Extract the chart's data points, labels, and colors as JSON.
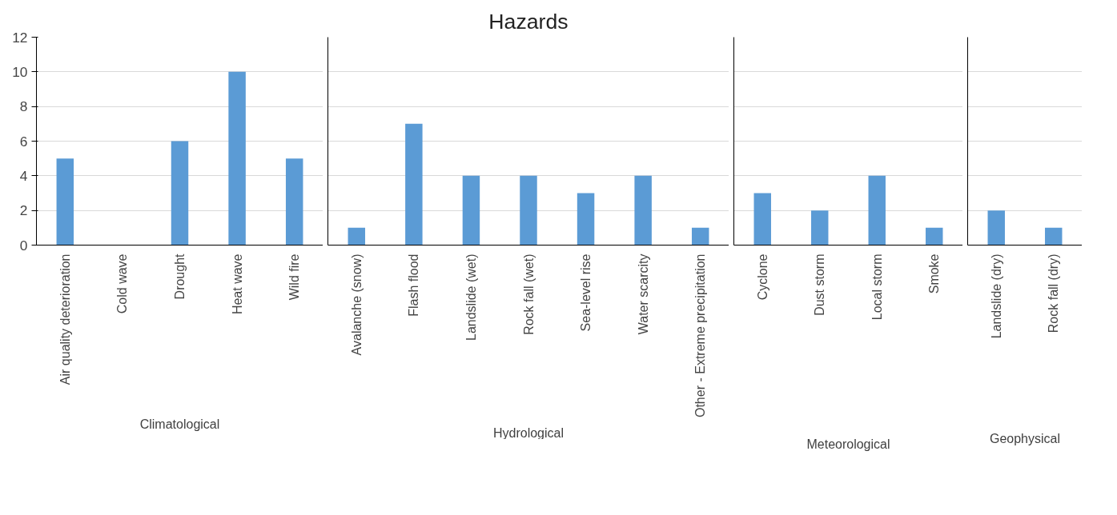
{
  "chart_data": [
    {
      "type": "bar",
      "xlabel": "Climatological",
      "categories": [
        "Air quality deterioration",
        "Cold wave",
        "Drought",
        "Heat wave",
        "Wild fire"
      ],
      "values": [
        5,
        0,
        6,
        10,
        5
      ],
      "color": "#5b9bd5",
      "ylim": [
        0,
        12
      ],
      "yticks": [
        0,
        2,
        4,
        6,
        8,
        10,
        12
      ],
      "grid": "y"
    },
    {
      "type": "bar",
      "title": "Hazards",
      "xlabel": "Hydrological",
      "categories": [
        "Avalanche (snow)",
        "Flash flood",
        "Landslide (wet)",
        "Rock fall (wet)",
        "Sea-level rise",
        "Water scarcity",
        "Other - Extreme precipitation"
      ],
      "values": [
        1,
        7,
        4,
        4,
        3,
        4,
        1
      ],
      "color": "#5b9bd5",
      "ylim": [
        0,
        12
      ],
      "yticks": [
        0,
        2,
        4,
        6,
        8,
        10,
        12
      ],
      "grid": "y",
      "tick_labels": "x"
    },
    {
      "type": "bar",
      "xlabel": "Meteorological",
      "categories": [
        "Cyclone",
        "Dust storm",
        "Local storm",
        "Smoke"
      ],
      "values": [
        3,
        2,
        4,
        1
      ],
      "color": "#5b9bd5",
      "ylim": [
        0,
        12
      ],
      "yticks": [
        0,
        2,
        4,
        6,
        8,
        10,
        12
      ],
      "grid": "y",
      "tick_labels": "x"
    },
    {
      "type": "bar",
      "xlabel": "Geophysical",
      "categories": [
        "Landslide (dry)",
        "Rock fall (dry)"
      ],
      "values": [
        2,
        1
      ],
      "color": "#5b9bd5",
      "ylim": [
        0,
        12
      ],
      "yticks": [
        0,
        2,
        4,
        6,
        8,
        10,
        12
      ],
      "grid": "y",
      "tick_labels": "x"
    }
  ]
}
